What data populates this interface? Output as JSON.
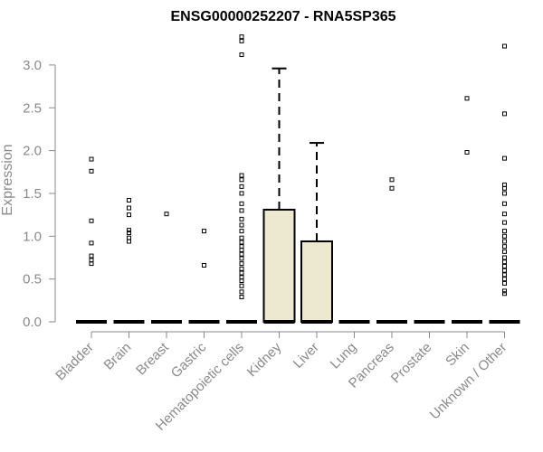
{
  "chart_data": {
    "type": "box",
    "title": "ENSG00000252207 - RNA5SP365",
    "xlabel": "",
    "ylabel": "Expression",
    "ylim": [
      0,
      3.3
    ],
    "yticks": [
      "0.0",
      "0.5",
      "1.0",
      "1.5",
      "2.0",
      "2.5",
      "3.0"
    ],
    "categories": [
      "Bladder",
      "Brain",
      "Breast",
      "Gastric",
      "Hematopoietic cells",
      "Kidney",
      "Liver",
      "Lung",
      "Pancreas",
      "Prostate",
      "Skin",
      "Unknown / Other"
    ],
    "box_fill": "#ede8d0",
    "boxes": [
      {
        "category": "Bladder",
        "min": 0,
        "q1": 0,
        "median": 0,
        "q3": 0,
        "max": 0,
        "outliers": [
          0.68,
          0.72,
          0.77,
          0.92,
          1.18,
          1.76,
          1.9
        ]
      },
      {
        "category": "Brain",
        "min": 0,
        "q1": 0,
        "median": 0,
        "q3": 0,
        "max": 0,
        "outliers": [
          0.94,
          0.98,
          1.04,
          1.07,
          1.25,
          1.33,
          1.42
        ]
      },
      {
        "category": "Breast",
        "min": 0,
        "q1": 0,
        "median": 0,
        "q3": 0,
        "max": 0,
        "outliers": [
          1.26
        ]
      },
      {
        "category": "Gastric",
        "min": 0,
        "q1": 0,
        "median": 0,
        "q3": 0,
        "max": 0,
        "outliers": [
          0.66,
          1.06
        ]
      },
      {
        "category": "Hematopoietic cells",
        "min": 0,
        "q1": 0,
        "median": 0,
        "q3": 0,
        "max": 0,
        "outliers": [
          0.29,
          0.35,
          0.42,
          0.48,
          0.52,
          0.57,
          0.62,
          0.68,
          0.74,
          0.79,
          0.84,
          0.88,
          0.93,
          0.98,
          1.06,
          1.13,
          1.2,
          1.3,
          1.38,
          1.5,
          1.58,
          1.66,
          1.71,
          3.12,
          3.28,
          3.33
        ]
      },
      {
        "category": "Kidney",
        "min": 0,
        "q1": 0,
        "median": 0,
        "q3": 1.31,
        "max": 2.96,
        "outliers": []
      },
      {
        "category": "Liver",
        "min": 0,
        "q1": 0,
        "median": 0,
        "q3": 0.94,
        "max": 2.09,
        "outliers": []
      },
      {
        "category": "Lung",
        "min": 0,
        "q1": 0,
        "median": 0,
        "q3": 0,
        "max": 0,
        "outliers": []
      },
      {
        "category": "Pancreas",
        "min": 0,
        "q1": 0,
        "median": 0,
        "q3": 0,
        "max": 0,
        "outliers": [
          1.56,
          1.66
        ]
      },
      {
        "category": "Prostate",
        "min": 0,
        "q1": 0,
        "median": 0,
        "q3": 0,
        "max": 0,
        "outliers": []
      },
      {
        "category": "Skin",
        "min": 0,
        "q1": 0,
        "median": 0,
        "q3": 0,
        "max": 0,
        "outliers": [
          1.98,
          2.61
        ]
      },
      {
        "category": "Unknown / Other",
        "min": 0,
        "q1": 0,
        "median": 0,
        "q3": 0,
        "max": 0,
        "outliers": [
          0.33,
          0.36,
          0.45,
          0.5,
          0.55,
          0.6,
          0.65,
          0.7,
          0.75,
          0.82,
          0.88,
          0.94,
          1.0,
          1.06,
          1.16,
          1.26,
          1.38,
          1.5,
          1.56,
          1.6,
          1.91,
          2.43,
          3.22
        ]
      }
    ],
    "grid": false,
    "legend": "none"
  }
}
